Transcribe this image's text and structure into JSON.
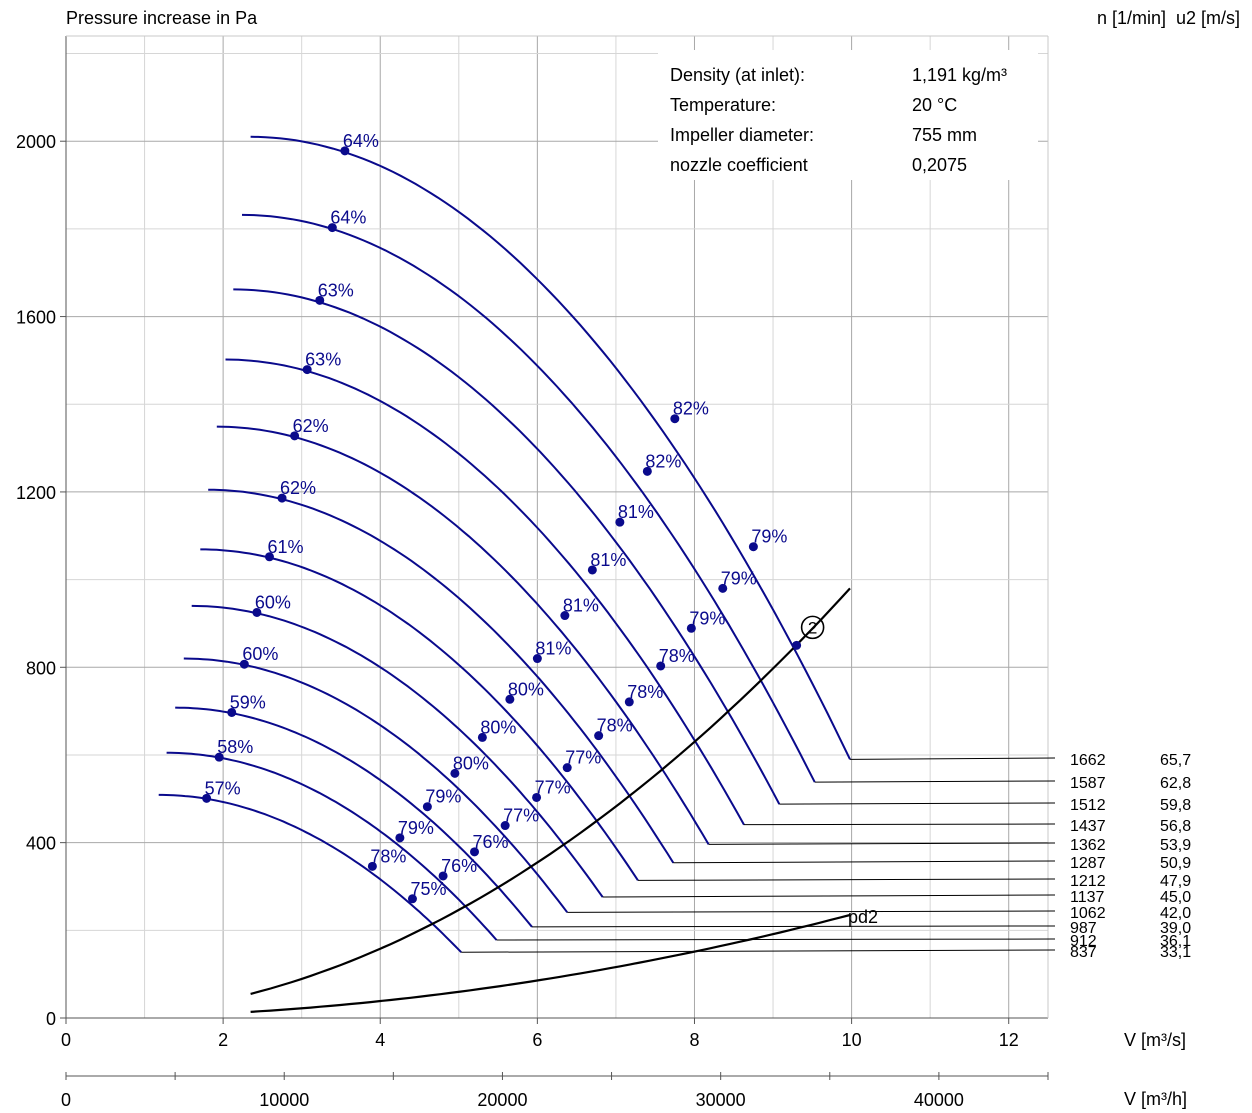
{
  "chart_data": {
    "type": "line",
    "ylabel": "Pressure increase in Pa",
    "right_header": "n [1/min]  u2 [m/s]",
    "xlabel": "V [m³/s]",
    "xlabel2": "V [m³/h]",
    "xlim": [
      0,
      12.5
    ],
    "ylim": [
      0,
      2240
    ],
    "x_ticks": [
      "0",
      "2",
      "4",
      "6",
      "8",
      "10",
      "12"
    ],
    "x2_ticks": [
      "0",
      "10000",
      "20000",
      "30000",
      "40000"
    ],
    "y_ticks": [
      "0",
      "400",
      "800",
      "1200",
      "1600",
      "2000"
    ],
    "grid": true,
    "colors": {
      "curves": "#0a0a8c",
      "system": "#000000",
      "axes": "#333333"
    },
    "info": [
      {
        "label": "Density (at inlet):",
        "value": "1,191 kg/m³"
      },
      {
        "label": "Temperature:",
        "value": "20 °C"
      },
      {
        "label": "Impeller diameter:",
        "value": "755 mm"
      },
      {
        "label": "nozzle coefficient",
        "value": "0,2075"
      }
    ],
    "speed_labels": [
      {
        "n": "1662",
        "u2": "65,7"
      },
      {
        "n": "1587",
        "u2": "62,8"
      },
      {
        "n": "1512",
        "u2": "59,8"
      },
      {
        "n": "1437",
        "u2": "56,8"
      },
      {
        "n": "1362",
        "u2": "53,9"
      },
      {
        "n": "1287",
        "u2": "50,9"
      },
      {
        "n": "1212",
        "u2": "47,9"
      },
      {
        "n": "1137",
        "u2": "45,0"
      },
      {
        "n": "1062",
        "u2": "42,0"
      },
      {
        "n": "987",
        "u2": "39,0"
      },
      {
        "n": "912",
        "u2": "36,1"
      },
      {
        "n": "837",
        "u2": "33,1"
      }
    ],
    "series": [
      {
        "n": 1662,
        "x_start": 2.35,
        "p0": 2010,
        "x_end": 9.98,
        "p_end": 590,
        "eff_points": [
          {
            "x": 3.55,
            "y": 1978,
            "label": "64%"
          },
          {
            "x": 7.75,
            "y": 1367,
            "label": "82%"
          },
          {
            "x": 8.75,
            "y": 1075,
            "label": "79%"
          }
        ]
      },
      {
        "n": 1587,
        "x_start": 2.24,
        "p0": 1832,
        "x_end": 9.53,
        "p_end": 538,
        "eff_points": [
          {
            "x": 3.39,
            "y": 1803,
            "label": "64%"
          },
          {
            "x": 7.4,
            "y": 1247,
            "label": "82%"
          },
          {
            "x": 8.36,
            "y": 980,
            "label": "79%"
          }
        ]
      },
      {
        "n": 1512,
        "x_start": 2.13,
        "p0": 1662,
        "x_end": 9.08,
        "p_end": 488,
        "eff_points": [
          {
            "x": 3.23,
            "y": 1637,
            "label": "63%"
          },
          {
            "x": 7.05,
            "y": 1131,
            "label": "81%"
          },
          {
            "x": 7.96,
            "y": 889,
            "label": "79%"
          }
        ]
      },
      {
        "n": 1437,
        "x_start": 2.03,
        "p0": 1502,
        "x_end": 8.63,
        "p_end": 441,
        "eff_points": [
          {
            "x": 3.07,
            "y": 1479,
            "label": "63%"
          },
          {
            "x": 6.7,
            "y": 1022,
            "label": "81%"
          },
          {
            "x": 7.57,
            "y": 803,
            "label": "78%"
          }
        ]
      },
      {
        "n": 1362,
        "x_start": 1.92,
        "p0": 1349,
        "x_end": 8.18,
        "p_end": 396,
        "eff_points": [
          {
            "x": 2.91,
            "y": 1328,
            "label": "62%"
          },
          {
            "x": 6.35,
            "y": 918,
            "label": "81%"
          },
          {
            "x": 7.17,
            "y": 721,
            "label": "78%"
          }
        ]
      },
      {
        "n": 1287,
        "x_start": 1.81,
        "p0": 1205,
        "x_end": 7.73,
        "p_end": 354,
        "eff_points": [
          {
            "x": 2.75,
            "y": 1186,
            "label": "62%"
          },
          {
            "x": 6.0,
            "y": 820,
            "label": "81%"
          },
          {
            "x": 6.78,
            "y": 644,
            "label": "78%"
          }
        ]
      },
      {
        "n": 1212,
        "x_start": 1.71,
        "p0": 1069,
        "x_end": 7.28,
        "p_end": 314,
        "eff_points": [
          {
            "x": 2.59,
            "y": 1052,
            "label": "61%"
          },
          {
            "x": 5.65,
            "y": 727,
            "label": "80%"
          },
          {
            "x": 6.38,
            "y": 571,
            "label": "77%"
          }
        ]
      },
      {
        "n": 1137,
        "x_start": 1.6,
        "p0": 940,
        "x_end": 6.83,
        "p_end": 276,
        "eff_points": [
          {
            "x": 2.43,
            "y": 925,
            "label": "60%"
          },
          {
            "x": 5.3,
            "y": 640,
            "label": "80%"
          },
          {
            "x": 5.99,
            "y": 503,
            "label": "77%"
          }
        ]
      },
      {
        "n": 1062,
        "x_start": 1.5,
        "p0": 820,
        "x_end": 6.38,
        "p_end": 241,
        "eff_points": [
          {
            "x": 2.27,
            "y": 807,
            "label": "60%"
          },
          {
            "x": 4.95,
            "y": 558,
            "label": "80%"
          },
          {
            "x": 5.59,
            "y": 439,
            "label": "77%"
          }
        ]
      },
      {
        "n": 987,
        "x_start": 1.39,
        "p0": 708,
        "x_end": 5.93,
        "p_end": 208,
        "eff_points": [
          {
            "x": 2.11,
            "y": 697,
            "label": "59%"
          },
          {
            "x": 4.6,
            "y": 482,
            "label": "79%"
          },
          {
            "x": 5.2,
            "y": 379,
            "label": "76%"
          }
        ]
      },
      {
        "n": 912,
        "x_start": 1.28,
        "p0": 605,
        "x_end": 5.48,
        "p_end": 178,
        "eff_points": [
          {
            "x": 1.95,
            "y": 595,
            "label": "58%"
          },
          {
            "x": 4.25,
            "y": 411,
            "label": "79%"
          },
          {
            "x": 4.8,
            "y": 324,
            "label": "76%"
          }
        ]
      },
      {
        "n": 837,
        "x_start": 1.18,
        "p0": 509,
        "x_end": 5.03,
        "p_end": 150,
        "eff_points": [
          {
            "x": 1.79,
            "y": 501,
            "label": "57%"
          },
          {
            "x": 3.9,
            "y": 346,
            "label": "78%"
          },
          {
            "x": 4.41,
            "y": 272,
            "label": "75%"
          }
        ]
      }
    ],
    "system_curve": {
      "x": [
        2.35,
        9.98
      ],
      "y": [
        55,
        980
      ]
    },
    "pd2_curve": {
      "label": "pd2",
      "x": [
        2.35,
        9.98
      ],
      "y": [
        14,
        235
      ]
    },
    "operating_point": {
      "label": "2",
      "x": 9.3,
      "y": 850
    }
  }
}
